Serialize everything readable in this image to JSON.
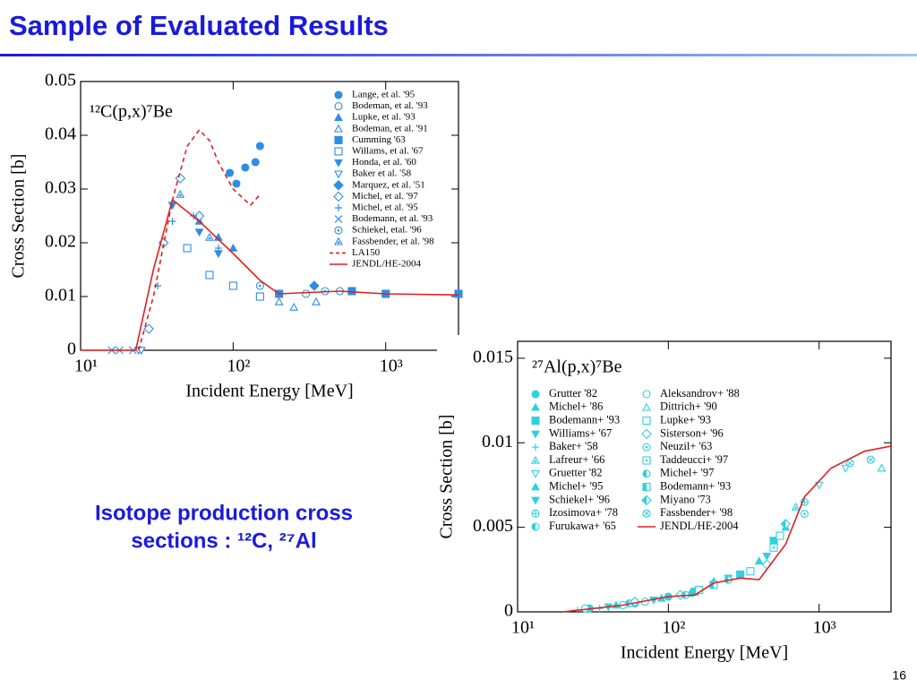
{
  "header": {
    "title": "Sample of Evaluated Results"
  },
  "caption": [
    "Isotope production cross",
    "sections : ¹²C, ²⁷Al"
  ],
  "page_number": "16",
  "chart_data": [
    {
      "type": "scatter",
      "title": "¹²C(p,x)⁷Be",
      "x_label": "Incident Energy [MeV]",
      "y_label": "Cross Section [b]",
      "xscale": "log",
      "xlim": [
        10,
        3000
      ],
      "xticks": [
        {
          "value": 10,
          "label": "10¹"
        },
        {
          "value": 100,
          "label": "10²"
        },
        {
          "value": 1000,
          "label": "10³"
        }
      ],
      "ylim": [
        0,
        0.05
      ],
      "yticks": [
        0,
        0.01,
        0.02,
        0.03,
        0.04,
        0.05
      ],
      "legend": "upper right",
      "series": [
        {
          "name": "Lange, et al. '95",
          "color": "#2f8de4",
          "marker": "circle",
          "x": [
            95,
            105,
            120,
            140,
            150
          ],
          "values": [
            0.033,
            0.031,
            0.034,
            0.035,
            0.038
          ]
        },
        {
          "name": "Bodeman, et al. '93",
          "color": "#2f8de4",
          "marker": "circle-open",
          "x": [
            200,
            300,
            500
          ],
          "values": [
            0.0105,
            0.0105,
            0.011
          ]
        },
        {
          "name": "Lupke, et al. '93",
          "color": "#2f8de4",
          "marker": "triangle",
          "x": [
            60,
            80,
            100
          ],
          "values": [
            0.024,
            0.021,
            0.019
          ]
        },
        {
          "name": "Bodeman, et al. '91",
          "color": "#2f8de4",
          "marker": "triangle-open",
          "x": [
            200,
            250,
            350
          ],
          "values": [
            0.009,
            0.008,
            0.009
          ]
        },
        {
          "name": "Cumming '63",
          "color": "#2f8de4",
          "marker": "square",
          "x": [
            200,
            600,
            1000,
            3000
          ],
          "values": [
            0.0105,
            0.011,
            0.0105,
            0.0105
          ]
        },
        {
          "name": "Willams, et al. '67",
          "color": "#2f8de4",
          "marker": "square-open",
          "x": [
            50,
            70,
            100,
            150
          ],
          "values": [
            0.019,
            0.014,
            0.012,
            0.01
          ]
        },
        {
          "name": "Honda, et al. '60",
          "color": "#2f8de4",
          "marker": "triangle-down",
          "x": [
            40,
            60,
            80
          ],
          "values": [
            0.027,
            0.022,
            0.018
          ]
        },
        {
          "name": "Baker et al. '58",
          "color": "#2f8de4",
          "marker": "triangle-down-open",
          "x": [
            24,
            25
          ],
          "values": [
            0,
            0
          ]
        },
        {
          "name": "Marquez, et al. '51",
          "color": "#2f8de4",
          "marker": "diamond",
          "x": [
            340
          ],
          "values": [
            0.012
          ]
        },
        {
          "name": "Michel, et al. '97",
          "color": "#2f8de4",
          "marker": "diamond-open",
          "x": [
            28,
            35,
            45,
            60
          ],
          "values": [
            0.004,
            0.02,
            0.032,
            0.025
          ]
        },
        {
          "name": "Michel, et al. '95",
          "color": "#2f8de4",
          "marker": "plus",
          "x": [
            32,
            40,
            55,
            80
          ],
          "values": [
            0.012,
            0.024,
            0.025,
            0.019
          ]
        },
        {
          "name": "Bodemann, et al. '93",
          "color": "#2f8de4",
          "marker": "cross",
          "x": [
            16,
            18,
            22
          ],
          "values": [
            0,
            0,
            0
          ]
        },
        {
          "name": "Schiekel, etal. '96",
          "color": "#2f8de4",
          "marker": "circle-dot",
          "x": [
            150,
            400
          ],
          "values": [
            0.012,
            0.011
          ]
        },
        {
          "name": "Fassbender, et al. '98",
          "color": "#2f8de4",
          "marker": "triangle-dot",
          "x": [
            45,
            70
          ],
          "values": [
            0.029,
            0.021
          ]
        },
        {
          "name": "LA150",
          "color": "#e02020",
          "line": "dashed",
          "x": [
            24,
            30,
            40,
            50,
            60,
            70,
            80,
            100,
            130,
            150
          ],
          "values": [
            0,
            0.01,
            0.028,
            0.038,
            0.041,
            0.039,
            0.035,
            0.03,
            0.027,
            0.029
          ]
        },
        {
          "name": "JENDL/HE-2004",
          "color": "#e02020",
          "line": "solid",
          "x": [
            10,
            23,
            30,
            40,
            60,
            100,
            150,
            200,
            500,
            1000,
            3000
          ],
          "values": [
            0,
            0,
            0.015,
            0.028,
            0.024,
            0.018,
            0.013,
            0.0105,
            0.011,
            0.0105,
            0.0103
          ]
        }
      ]
    },
    {
      "type": "scatter",
      "title": "²⁷Al(p,x)⁷Be",
      "x_label": "Incident Energy [MeV]",
      "y_label": "Cross Section [b]",
      "xscale": "log",
      "xlim": [
        10,
        3000
      ],
      "xticks": [
        {
          "value": 10,
          "label": "10¹"
        },
        {
          "value": 100,
          "label": "10²"
        },
        {
          "value": 1000,
          "label": "10³"
        }
      ],
      "ylim": [
        0,
        0.016
      ],
      "yticks": [
        0,
        0.005,
        0.01,
        0.015
      ],
      "legend": "upper left",
      "series": [
        {
          "name": "Grutter '82",
          "color": "#2fd0e0",
          "marker": "circle",
          "x": [
            30,
            60,
            100
          ],
          "values": [
            0.0002,
            0.0005,
            0.0009
          ]
        },
        {
          "name": "Michel+ '86",
          "color": "#2fd0e0",
          "marker": "triangle",
          "x": [
            200,
            400,
            600
          ],
          "values": [
            0.0018,
            0.003,
            0.005
          ]
        },
        {
          "name": "Bodemann+ '93",
          "color": "#2fd0e0",
          "marker": "square",
          "x": [
            150,
            300,
            500
          ],
          "values": [
            0.0012,
            0.0022,
            0.0042
          ]
        },
        {
          "name": "Williams+ '67",
          "color": "#2fd0e0",
          "marker": "triangle-down",
          "x": [
            40,
            80
          ],
          "values": [
            0.0003,
            0.0007
          ]
        },
        {
          "name": "Baker+ '58",
          "color": "#2fd0e0",
          "marker": "plus",
          "x": [
            25,
            35
          ],
          "values": [
            0.0001,
            0.0002
          ]
        },
        {
          "name": "Lafreur+ '66",
          "color": "#2fd0e0",
          "marker": "triangle-dot",
          "x": [
            700
          ],
          "values": [
            0.0062
          ]
        },
        {
          "name": "Gruetter '82",
          "color": "#2fd0e0",
          "marker": "triangle-down-open",
          "x": [
            1000,
            1500
          ],
          "values": [
            0.0075,
            0.0085
          ]
        },
        {
          "name": "Michel+ '95",
          "color": "#2fd0e0",
          "marker": "triangle",
          "x": [
            45,
            90,
            140
          ],
          "values": [
            0.0004,
            0.0008,
            0.0011
          ]
        },
        {
          "name": "Schiekel+ '96",
          "color": "#2fd0e0",
          "marker": "triangle-down",
          "x": [
            250,
            450
          ],
          "values": [
            0.002,
            0.0033
          ]
        },
        {
          "name": "Izosimova+ '78",
          "color": "#2fd0e0",
          "marker": "circle-plus",
          "x": [
            800
          ],
          "values": [
            0.0065
          ]
        },
        {
          "name": "Furukawa+ '65",
          "color": "#2fd0e0",
          "marker": "circle-half",
          "x": [
            55
          ],
          "values": [
            0.0005
          ]
        },
        {
          "name": "Aleksandrov+ '88",
          "color": "#2fd0e0",
          "marker": "circle-open",
          "x": [
            28,
            50,
            70
          ],
          "values": [
            0.0002,
            0.0004,
            0.0006
          ]
        },
        {
          "name": "Dittrich+ '90",
          "color": "#2fd0e0",
          "marker": "triangle-open",
          "x": [
            2600
          ],
          "values": [
            0.0085
          ]
        },
        {
          "name": "Lupke+ '93",
          "color": "#2fd0e0",
          "marker": "square-open",
          "x": [
            160,
            350,
            550
          ],
          "values": [
            0.0013,
            0.0024,
            0.0045
          ]
        },
        {
          "name": "Sisterson+ '96",
          "color": "#2fd0e0",
          "marker": "diamond-open",
          "x": [
            60,
            120,
            450
          ],
          "values": [
            0.0006,
            0.001,
            0.0028
          ]
        },
        {
          "name": "Neuzil+ '63",
          "color": "#2fd0e0",
          "marker": "circle-dot",
          "x": [
            800
          ],
          "values": [
            0.0058
          ]
        },
        {
          "name": "Taddeucci+ '97",
          "color": "#2fd0e0",
          "marker": "square-dot",
          "x": [
            500
          ],
          "values": [
            0.0038
          ]
        },
        {
          "name": "Michel+ '97",
          "color": "#2fd0e0",
          "marker": "circle-half",
          "x": [
            130,
            250
          ],
          "values": [
            0.001,
            0.0019
          ]
        },
        {
          "name": "Bodemann+ '93",
          "color": "#2fd0e0",
          "marker": "square-half",
          "x": [
            200
          ],
          "values": [
            0.0016
          ]
        },
        {
          "name": "Miyano '73",
          "color": "#2fd0e0",
          "marker": "diamond-half",
          "x": [
            600
          ],
          "values": [
            0.0052
          ]
        },
        {
          "name": "Fassbender+ '98",
          "color": "#2fd0e0",
          "marker": "circle-cross",
          "x": [
            1600,
            2200
          ],
          "values": [
            0.0088,
            0.009
          ]
        },
        {
          "name": "JENDL/HE-2004",
          "color": "#e02020",
          "line": "solid",
          "x": [
            20,
            50,
            100,
            150,
            200,
            300,
            400,
            600,
            800,
            1200,
            2000,
            3000
          ],
          "values": [
            0,
            0.0004,
            0.0009,
            0.001,
            0.0017,
            0.002,
            0.0019,
            0.004,
            0.0068,
            0.0085,
            0.0095,
            0.0098
          ]
        }
      ]
    }
  ]
}
